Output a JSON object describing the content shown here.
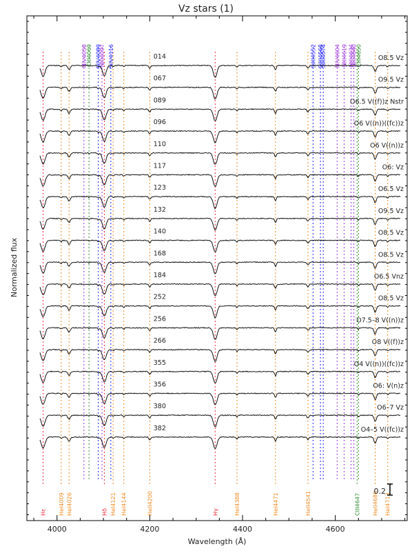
{
  "chart_data": {
    "type": "line",
    "title": "Vz stars (1)",
    "xlabel": "Wavelength (Å)",
    "ylabel": "Normalized flux",
    "xlim": [
      3935,
      4755
    ],
    "xticks": [
      4000,
      4200,
      4400,
      4600
    ],
    "scale_bar_label": "0.2",
    "top_lines": [
      {
        "label": "NIV4058",
        "x": 4058,
        "color": "#9b30d9"
      },
      {
        "label": "CIII4069",
        "x": 4069,
        "color": "#2e8b2e"
      },
      {
        "label": "SiIV4089",
        "x": 4089,
        "color": "#1a1aff"
      },
      {
        "label": "NIII4097",
        "x": 4097,
        "color": "#9b30d9"
      },
      {
        "label": "SiIV4116",
        "x": 4116,
        "color": "#1a1aff"
      },
      {
        "label": "SiIII4552",
        "x": 4552,
        "color": "#1a1aff"
      },
      {
        "label": "SiIII4568",
        "x": 4568,
        "color": "#1a1aff"
      },
      {
        "label": "SiIII4574",
        "x": 4574,
        "color": "#1a1aff"
      },
      {
        "label": "NIV4604",
        "x": 4604,
        "color": "#9b30d9"
      },
      {
        "label": "NIII4619",
        "x": 4619,
        "color": "#9b30d9"
      },
      {
        "label": "NIII4634",
        "x": 4634,
        "color": "#9b30d9"
      },
      {
        "label": "NIII4640",
        "x": 4640,
        "color": "#9b30d9"
      },
      {
        "label": "CIII4650",
        "x": 4650,
        "color": "#2e8b2e"
      }
    ],
    "bottom_lines": [
      {
        "label": "Hε",
        "x": 3970,
        "color": "#e8283c"
      },
      {
        "label": "HeI4009",
        "x": 4009,
        "color": "#f08a24"
      },
      {
        "label": "HeI4026",
        "x": 4026,
        "color": "#f08a24"
      },
      {
        "label": "Hδ",
        "x": 4102,
        "color": "#e8283c"
      },
      {
        "label": "HeI4121",
        "x": 4121,
        "color": "#f08a24"
      },
      {
        "label": "HeI4144",
        "x": 4144,
        "color": "#f08a24"
      },
      {
        "label": "HeII4200",
        "x": 4200,
        "color": "#f08a24"
      },
      {
        "label": "Hγ",
        "x": 4341,
        "color": "#e8283c"
      },
      {
        "label": "HeI4388",
        "x": 4388,
        "color": "#f08a24"
      },
      {
        "label": "HeI4471",
        "x": 4471,
        "color": "#f08a24"
      },
      {
        "label": "HeII4541",
        "x": 4541,
        "color": "#f08a24"
      },
      {
        "label": "CIII4647",
        "x": 4647,
        "color": "#2e8b2e"
      },
      {
        "label": "HeII4686",
        "x": 4686,
        "color": "#f08a24"
      },
      {
        "label": "HeI4713",
        "x": 4713,
        "color": "#f08a24"
      }
    ],
    "series": [
      {
        "name": "014",
        "sptype": "O8.5 Vz"
      },
      {
        "name": "067",
        "sptype": "O9.5 Vz"
      },
      {
        "name": "089",
        "sptype": "O6.5 V((f))z Nstr"
      },
      {
        "name": "096",
        "sptype": "O6 V((n))((fc))z"
      },
      {
        "name": "110",
        "sptype": "O6 V((n))z"
      },
      {
        "name": "117",
        "sptype": "O6: Vz"
      },
      {
        "name": "123",
        "sptype": "O6.5 Vz"
      },
      {
        "name": "132",
        "sptype": "O9.5 Vz"
      },
      {
        "name": "140",
        "sptype": "O8.5 Vz"
      },
      {
        "name": "168",
        "sptype": "O8.5 Vz"
      },
      {
        "name": "184",
        "sptype": "O6.5 Vnz"
      },
      {
        "name": "252",
        "sptype": "O8.5 Vz"
      },
      {
        "name": "256",
        "sptype": "O7.5–8 V((n))z"
      },
      {
        "name": "266",
        "sptype": "O8 V((f))z"
      },
      {
        "name": "355",
        "sptype": "O4 V((n))((fc))z"
      },
      {
        "name": "356",
        "sptype": "O6: V(n)z"
      },
      {
        "name": "380",
        "sptype": "O6–7 Vz"
      },
      {
        "name": "382",
        "sptype": "O4–5 V((fc))z"
      }
    ]
  }
}
